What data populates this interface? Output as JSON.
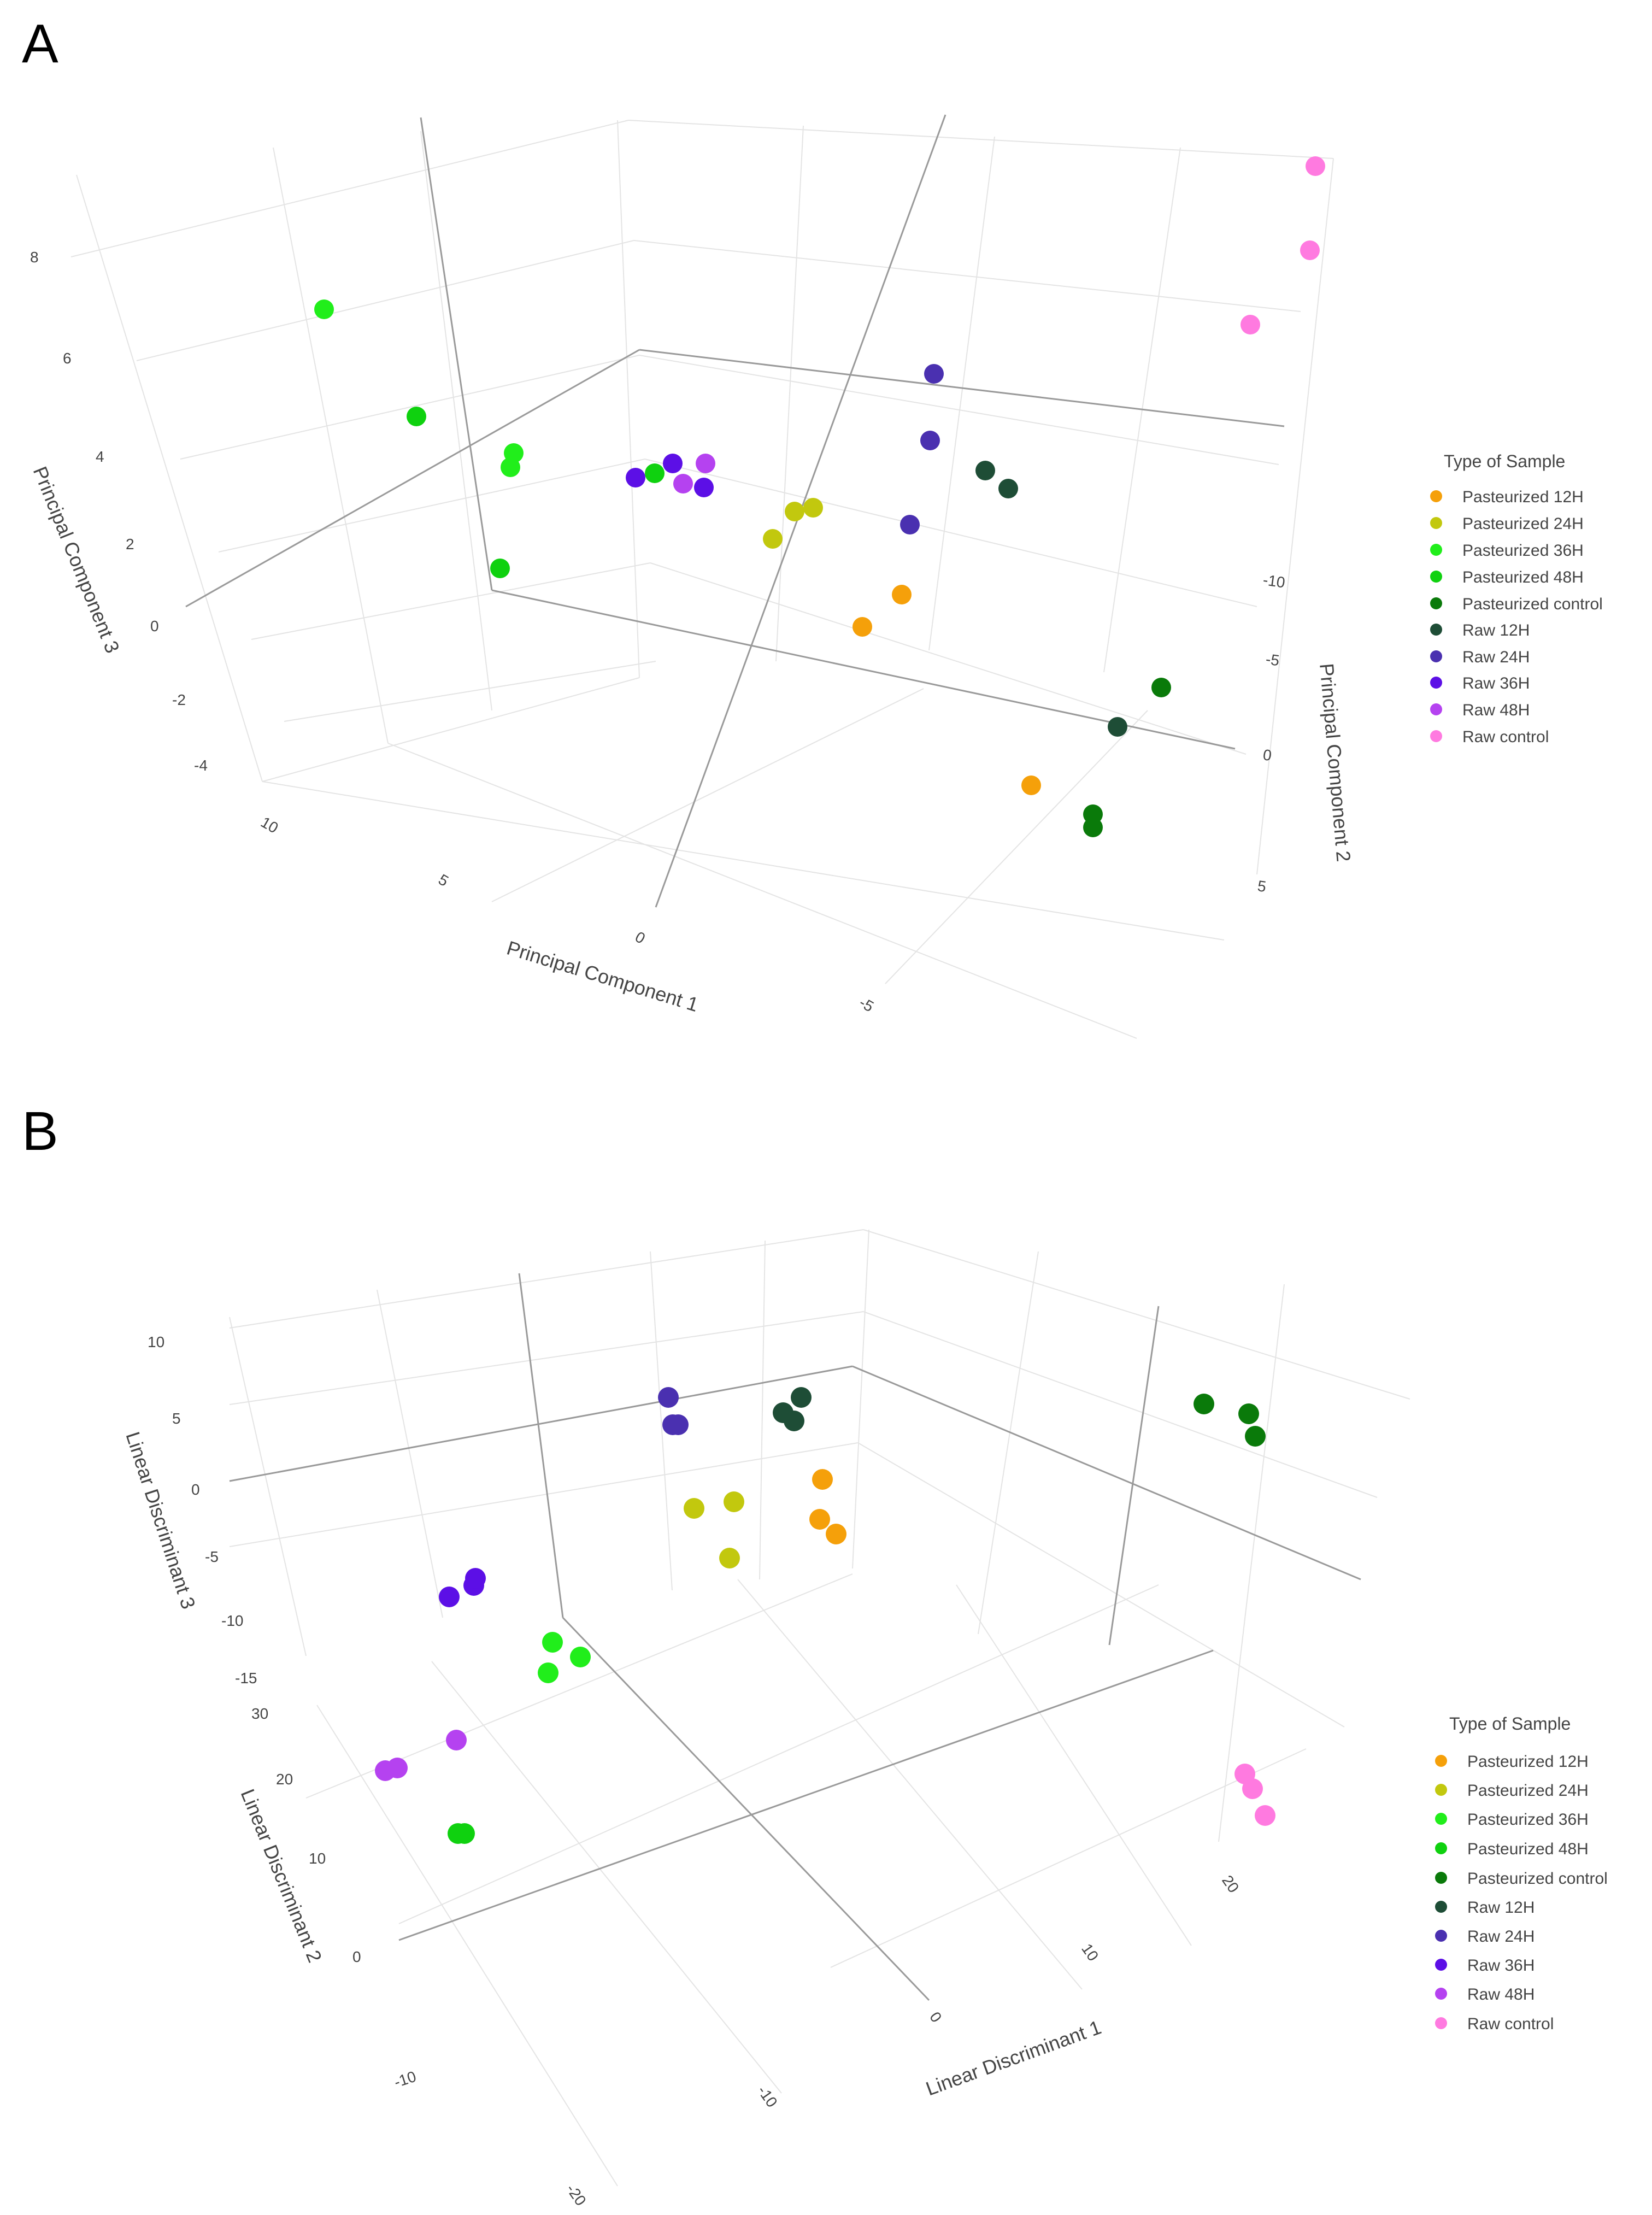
{
  "panel_labels": [
    "A",
    "B"
  ],
  "chart_data": [
    {
      "panel": "A",
      "type": "scatter",
      "dimensions": "3d",
      "title": "",
      "axes": {
        "x": {
          "label": "Principal Component 1",
          "ticks": [
            "10",
            "5",
            "0",
            "-5"
          ]
        },
        "y": {
          "label": "Principal Component 2",
          "ticks": [
            "-10",
            "-5",
            "0",
            "5"
          ]
        },
        "z": {
          "label": "Principal Component 3",
          "ticks": [
            "8",
            "6",
            "4",
            "2",
            "0",
            "-2",
            "-4"
          ]
        }
      },
      "legend": {
        "title": "Type of Sample",
        "position": "right",
        "entries": [
          "Pasteurized 12H",
          "Pasteurized 24H",
          "Pasteurized 36H",
          "Pasteurized 48H",
          "Pasteurized control",
          "Raw 12H",
          "Raw 24H",
          "Raw 36H",
          "Raw 48H",
          "Raw control"
        ]
      },
      "series": [
        {
          "name": "Pasteurized 12H",
          "color": "#f5a00a",
          "points": [
            [
              -2.5,
              -1.5,
              -1.0
            ],
            [
              -3.0,
              -2.5,
              -0.5
            ],
            [
              -6.0,
              2.0,
              -2.5
            ]
          ]
        },
        {
          "name": "Pasteurized 24H",
          "color": "#c2c80e",
          "points": [
            [
              0.5,
              -6.0,
              0.0
            ],
            [
              1.0,
              -7.0,
              0.5
            ],
            [
              0.0,
              -7.5,
              0.5
            ]
          ]
        },
        {
          "name": "Pasteurized 36H",
          "color": "#21ee1b",
          "points": [
            [
              3.5,
              -10.0,
              1.5
            ],
            [
              4.0,
              -10.5,
              1.3
            ],
            [
              7.0,
              -12.0,
              7.5
            ]
          ]
        },
        {
          "name": "Pasteurized 48H",
          "color": "#0fd10f",
          "points": [
            [
              3.0,
              -11.0,
              5.0
            ],
            [
              5.5,
              -9.5,
              3.0
            ],
            [
              6.5,
              -7.5,
              0.0
            ]
          ]
        },
        {
          "name": "Pasteurized control",
          "color": "#0a7a0a",
          "points": [
            [
              -6.5,
              3.0,
              -3.5
            ],
            [
              -6.5,
              3.5,
              -3.8
            ],
            [
              -8.0,
              -1.0,
              -1.5
            ]
          ]
        },
        {
          "name": "Raw 12H",
          "color": "#1e4d36",
          "points": [
            [
              -4.0,
              -8.0,
              2.5
            ],
            [
              -4.5,
              -7.5,
              2.0
            ],
            [
              -7.5,
              0.5,
              -2.0
            ]
          ]
        },
        {
          "name": "Raw 24H",
          "color": "#4a30b0",
          "points": [
            [
              -3.0,
              -10.5,
              5.0
            ],
            [
              -3.0,
              -9.0,
              3.0
            ],
            [
              -2.5,
              -5.0,
              0.0
            ]
          ]
        },
        {
          "name": "Raw 36H",
          "color": "#5c0fe6",
          "points": [
            [
              3.5,
              -11.5,
              2.5
            ],
            [
              3.0,
              -12.5,
              2.8
            ],
            [
              1.5,
              -11.0,
              2.5
            ]
          ]
        },
        {
          "name": "Raw 48H",
          "color": "#b542f0",
          "points": [
            [
              2.5,
              -11.5,
              2.5
            ],
            [
              1.5,
              -12.0,
              3.0
            ]
          ]
        },
        {
          "name": "Raw control",
          "color": "#ff7ae0",
          "points": [
            [
              -8.0,
              -15.0,
              10.0
            ],
            [
              -8.0,
              -13.5,
              8.5
            ],
            [
              -7.5,
              -12.5,
              7.0
            ]
          ]
        }
      ]
    },
    {
      "panel": "B",
      "type": "scatter",
      "dimensions": "3d",
      "title": "",
      "axes": {
        "x": {
          "label": "Linear Discriminant 1",
          "ticks": [
            "-20",
            "-10",
            "0",
            "10",
            "20"
          ]
        },
        "y": {
          "label": "Linear Discriminant 2",
          "ticks": [
            "-10",
            "0",
            "10",
            "20",
            "30"
          ]
        },
        "z": {
          "label": "Linear Discriminant 3",
          "ticks": [
            "10",
            "5",
            "0",
            "-5",
            "-10",
            "-15"
          ]
        }
      },
      "legend": {
        "title": "Type of Sample",
        "position": "right",
        "entries": [
          "Pasteurized 12H",
          "Pasteurized 24H",
          "Pasteurized 36H",
          "Pasteurized 48H",
          "Pasteurized control",
          "Raw 12H",
          "Raw 24H",
          "Raw 36H",
          "Raw 48H",
          "Raw control"
        ]
      },
      "series": [
        {
          "name": "Pasteurized 12H",
          "color": "#f5a00a",
          "points": [
            [
              5.0,
              20.0,
              -1.0
            ],
            [
              4.5,
              20.5,
              -4.0
            ],
            [
              5.5,
              20.0,
              -5.0
            ]
          ]
        },
        {
          "name": "Pasteurized 24H",
          "color": "#c2c80e",
          "points": [
            [
              0.0,
              20.5,
              -2.5
            ],
            [
              2.0,
              20.5,
              -2.0
            ],
            [
              1.5,
              20.0,
              -6.0
            ]
          ]
        },
        {
          "name": "Pasteurized 36H",
          "color": "#21ee1b",
          "points": [
            [
              -14.0,
              25.0,
              -11.0
            ],
            [
              -14.5,
              24.0,
              -13.0
            ],
            [
              -13.5,
              24.0,
              -12.5
            ]
          ]
        },
        {
          "name": "Pasteurized 48H",
          "color": "#0fd10f",
          "points": [
            [
              -18.0,
              14.0,
              -18.5
            ],
            [
              -17.8,
              14.0,
              -18.5
            ]
          ]
        },
        {
          "name": "Pasteurized control",
          "color": "#0a7a0a",
          "points": [
            [
              22.0,
              24.0,
              7.5
            ],
            [
              23.0,
              24.0,
              7.0
            ],
            [
              23.0,
              23.5,
              6.0
            ]
          ]
        },
        {
          "name": "Raw 12H",
          "color": "#1e4d36",
          "points": [
            [
              3.0,
              24.0,
              3.5
            ],
            [
              3.5,
              24.5,
              4.0
            ],
            [
              3.0,
              24.5,
              4.5
            ]
          ]
        },
        {
          "name": "Raw 24H",
          "color": "#4a30b0",
          "points": [
            [
              -1.5,
              26.0,
              4.5
            ],
            [
              -1.5,
              25.5,
              3.5
            ],
            [
              -1.4,
              25.5,
              3.5
            ]
          ]
        },
        {
          "name": "Raw 36H",
          "color": "#5c0fe6",
          "points": [
            [
              -17.0,
              27.0,
              -7.0
            ],
            [
              -16.5,
              27.0,
              -6.5
            ],
            [
              -16.5,
              27.5,
              -6.0
            ]
          ]
        },
        {
          "name": "Raw 48H",
          "color": "#b542f0",
          "points": [
            [
              -20.0,
              21.0,
              -15.0
            ],
            [
              -20.5,
              21.0,
              -15.5
            ],
            [
              -18.0,
              19.0,
              -15.5
            ]
          ]
        },
        {
          "name": "Raw control",
          "color": "#ff7ae0",
          "points": [
            [
              24.0,
              1.0,
              -4.0
            ],
            [
              24.5,
              0.5,
              -4.5
            ],
            [
              25.0,
              0.0,
              -5.5
            ]
          ]
        }
      ]
    }
  ]
}
